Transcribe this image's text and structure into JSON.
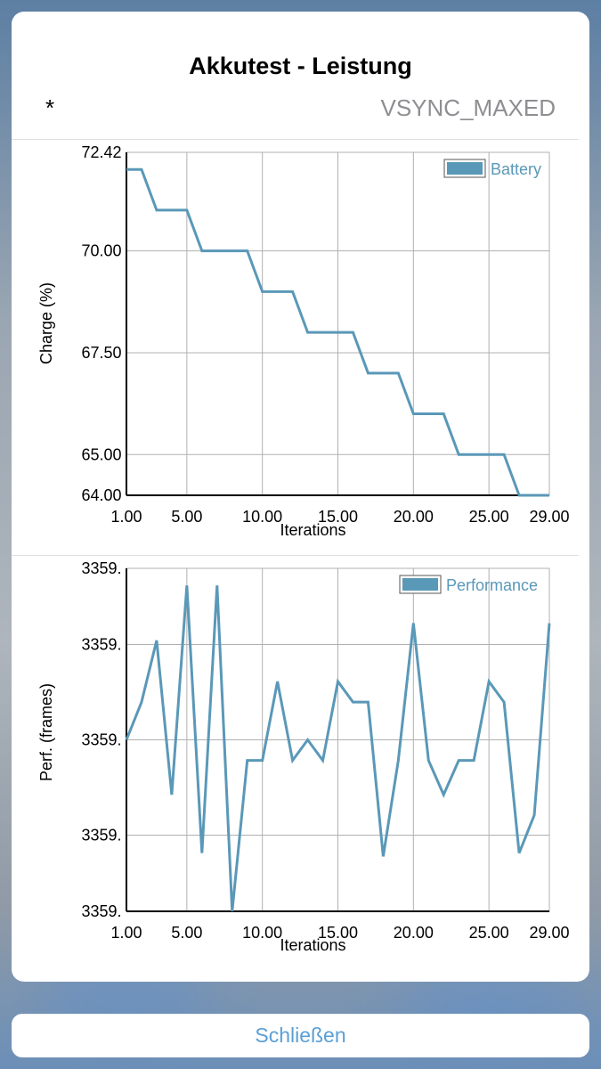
{
  "dialog": {
    "title": "Akkutest - Leistung",
    "marker": "*",
    "mode": "VSYNC_MAXED",
    "close_label": "Schließen"
  },
  "colors": {
    "series": "#5a98b8",
    "legend_fill": "#5a98b8",
    "grid": "#b0b0b0",
    "axis": "#000000",
    "close_text": "#5a9fd6"
  },
  "chart_data": [
    {
      "type": "line",
      "xlabel": "Iterations",
      "ylabel": "Charge (%)",
      "xlim": [
        1,
        29
      ],
      "ylim": [
        64,
        72.42
      ],
      "x_tick_labels": [
        "1.00",
        "5.00",
        "10.00",
        "15.00",
        "20.00",
        "25.00",
        "29.00"
      ],
      "x_tick_values": [
        1,
        5,
        10,
        15,
        20,
        25,
        29
      ],
      "y_tick_labels": [
        "64.00",
        "65.00",
        "67.50",
        "70.00",
        "72.42"
      ],
      "y_tick_values": [
        64,
        65,
        67.5,
        70,
        72.42
      ],
      "legend_position": "top-right",
      "series": [
        {
          "name": "Battery",
          "x": [
            1,
            2,
            3,
            4,
            5,
            6,
            7,
            8,
            9,
            10,
            11,
            12,
            13,
            14,
            15,
            16,
            17,
            18,
            19,
            20,
            21,
            22,
            23,
            24,
            25,
            26,
            27,
            28,
            29
          ],
          "values": [
            72,
            72,
            71,
            71,
            71,
            70,
            70,
            70,
            70,
            69,
            69,
            69,
            68,
            68,
            68,
            68,
            67,
            67,
            67,
            66,
            66,
            66,
            65,
            65,
            65,
            65,
            64,
            64,
            64
          ]
        }
      ]
    },
    {
      "type": "line",
      "xlabel": "Iterations",
      "ylabel": "Perf. (frames)",
      "xlim": [
        1,
        29
      ],
      "ylim": [
        0,
        1
      ],
      "x_tick_labels": [
        "1.00",
        "5.00",
        "10.00",
        "15.00",
        "20.00",
        "25.00",
        "29.00"
      ],
      "x_tick_values": [
        1,
        5,
        10,
        15,
        20,
        25,
        29
      ],
      "y_tick_labels": [
        "3359.",
        "3359.",
        "3359.",
        "3359.",
        "3359."
      ],
      "y_tick_values": [
        0,
        0.222,
        0.5,
        0.778,
        1
      ],
      "legend_position": "top-right",
      "series": [
        {
          "name": "Performance",
          "x": [
            1,
            2,
            3,
            4,
            5,
            6,
            7,
            8,
            9,
            10,
            11,
            12,
            13,
            14,
            15,
            16,
            17,
            18,
            19,
            20,
            21,
            22,
            23,
            24,
            25,
            26,
            27,
            28,
            29
          ],
          "values": [
            0.5,
            0.61,
            0.79,
            0.34,
            0.95,
            0.17,
            0.95,
            0.0,
            0.44,
            0.44,
            0.67,
            0.44,
            0.5,
            0.44,
            0.67,
            0.61,
            0.61,
            0.16,
            0.44,
            0.84,
            0.44,
            0.34,
            0.44,
            0.44,
            0.67,
            0.61,
            0.17,
            0.28,
            0.84
          ]
        }
      ]
    }
  ]
}
